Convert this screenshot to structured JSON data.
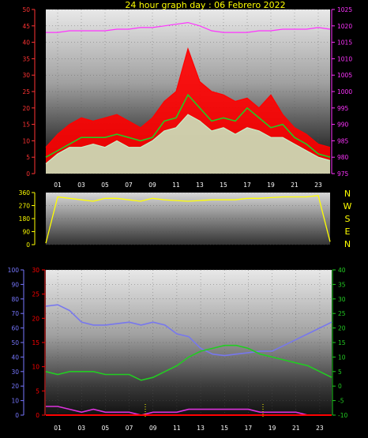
{
  "title": "24 hour graph day : 06 Febrero 2022",
  "x_tick_labels": [
    "01",
    "03",
    "05",
    "07",
    "09",
    "11",
    "13",
    "15",
    "17",
    "19",
    "21",
    "23"
  ],
  "compass_labels": [
    "N",
    "W",
    "S",
    "E",
    "N"
  ],
  "colors": {
    "wind_gust": "#ff0000",
    "wind_avg": "#22cc22",
    "wind_speed": "#c8f0c8",
    "pressure": "#ff33ff",
    "direction": "#ffff00",
    "humidity": "#7777ee",
    "temp_outdoor": "#22cc22",
    "dewpoint": "#dd33dd",
    "rain": "#ff0000",
    "axis_left_top": "#ff3333",
    "axis_right_top": "#ff33ff",
    "axis_humidity": "#7777ff",
    "axis_temp": "#22cc22"
  },
  "chart_data": [
    {
      "type": "line",
      "x": [
        0,
        1,
        2,
        3,
        4,
        5,
        6,
        7,
        8,
        9,
        10,
        11,
        12,
        13,
        14,
        15,
        16,
        17,
        18,
        19,
        20,
        21,
        22,
        23,
        24
      ],
      "ylim": [
        0,
        50
      ],
      "ylim_right": [
        975,
        1025
      ],
      "y_ticks": [
        0,
        5,
        10,
        15,
        20,
        25,
        30,
        35,
        40,
        45,
        50
      ],
      "y_ticks_right": [
        975,
        980,
        985,
        990,
        995,
        1000,
        1005,
        1010,
        1015,
        1020,
        1025
      ],
      "series": [
        {
          "key": "wind_gust",
          "axis": "left",
          "values": [
            8,
            12,
            15,
            17,
            16,
            17,
            18,
            16,
            14,
            17,
            22,
            25,
            38,
            28,
            25,
            24,
            22,
            23,
            20,
            24,
            18,
            14,
            12,
            9,
            8
          ]
        },
        {
          "key": "wind_avg",
          "axis": "left",
          "values": [
            5,
            7,
            9,
            11,
            11,
            11,
            12,
            11,
            10,
            11,
            16,
            17,
            24,
            20,
            16,
            17,
            16,
            20,
            17,
            14,
            15,
            11,
            9,
            6,
            5
          ]
        },
        {
          "key": "wind_speed",
          "axis": "left",
          "values": [
            3,
            6,
            8,
            8,
            9,
            8,
            10,
            8,
            8,
            10,
            13,
            14,
            18,
            16,
            13,
            14,
            12,
            14,
            13,
            11,
            11,
            9,
            7,
            5,
            4
          ]
        },
        {
          "key": "pressure",
          "axis": "right",
          "values": [
            1018,
            1018,
            1018.5,
            1018.5,
            1018.5,
            1018.5,
            1019,
            1019,
            1019.5,
            1019.5,
            1020,
            1020.5,
            1021,
            1020,
            1018.5,
            1018,
            1018,
            1018,
            1018.5,
            1018.5,
            1019,
            1019,
            1019,
            1019.5,
            1019
          ]
        }
      ]
    },
    {
      "type": "line",
      "x": [
        0,
        1,
        2,
        3,
        4,
        5,
        6,
        7,
        8,
        9,
        10,
        11,
        12,
        13,
        14,
        15,
        16,
        17,
        18,
        19,
        20,
        21,
        22,
        23,
        24
      ],
      "ylim": [
        0,
        360
      ],
      "y_ticks": [
        0,
        90,
        180,
        270,
        360
      ],
      "series": [
        {
          "key": "direction",
          "values": [
            10,
            330,
            320,
            310,
            300,
            320,
            320,
            310,
            300,
            320,
            310,
            305,
            300,
            305,
            310,
            310,
            310,
            320,
            320,
            325,
            330,
            330,
            330,
            340,
            20
          ]
        }
      ]
    },
    {
      "type": "line",
      "x": [
        0,
        1,
        2,
        3,
        4,
        5,
        6,
        7,
        8,
        9,
        10,
        11,
        12,
        13,
        14,
        15,
        16,
        17,
        18,
        19,
        20,
        21,
        22,
        23,
        24
      ],
      "ylim_humidity": [
        0,
        100
      ],
      "ylim_left": [
        0,
        30
      ],
      "ylim_right": [
        -10,
        40
      ],
      "y_ticks_humidity": [
        0,
        10,
        20,
        30,
        40,
        50,
        60,
        70,
        80,
        90,
        100
      ],
      "y_ticks_left": [
        0,
        5,
        10,
        15,
        20,
        25,
        30
      ],
      "y_ticks_right": [
        -10,
        -5,
        0,
        5,
        10,
        15,
        20,
        25,
        30,
        35,
        40
      ],
      "series": [
        {
          "key": "humidity",
          "axis": "humidity",
          "values": [
            75,
            76,
            72,
            64,
            62,
            62,
            63,
            64,
            62,
            64,
            62,
            56,
            54,
            46,
            42,
            41,
            42,
            43,
            44,
            44,
            48,
            52,
            56,
            60,
            64
          ]
        },
        {
          "key": "temp_outdoor",
          "axis": "right",
          "values": [
            5,
            4,
            5,
            5,
            5,
            4,
            4,
            4,
            2,
            3,
            5,
            7,
            10,
            12,
            13,
            14,
            14,
            13,
            11,
            10,
            9,
            8,
            7,
            5,
            3
          ]
        },
        {
          "key": "dewpoint",
          "axis": "right",
          "values": [
            -7,
            -7,
            -8,
            -9,
            -8,
            -9,
            -9,
            -9,
            -10,
            -9,
            -9,
            -9,
            -8,
            -8,
            -8,
            -8,
            -8,
            -8,
            -9,
            -9,
            -9,
            -9,
            -10,
            -10,
            -10
          ]
        },
        {
          "key": "rain",
          "axis": "left",
          "values": [
            0,
            0,
            0,
            0,
            0,
            0,
            0,
            0,
            0,
            0,
            0,
            0,
            0,
            0,
            0,
            0,
            0,
            0,
            0,
            0,
            0,
            0,
            0,
            0,
            0
          ]
        }
      ]
    }
  ]
}
